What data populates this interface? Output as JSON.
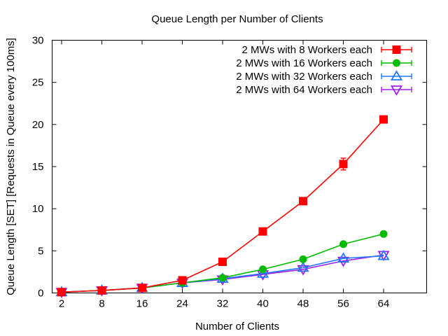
{
  "chart_data": {
    "type": "line",
    "title": "Queue Length per Number of Clients",
    "xlabel": "Number of Clients",
    "ylabel": "Queue Length [SET] [Requests in Queue every 100ms]",
    "x_ticks": [
      "2",
      "8",
      "16",
      "24",
      "32",
      "40",
      "48",
      "56",
      "64"
    ],
    "y_ticks": [
      "0",
      "5",
      "10",
      "15",
      "20",
      "25",
      "30"
    ],
    "ylim": [
      0,
      30
    ],
    "grid": false,
    "legend_position": "top-right",
    "series": [
      {
        "name": "2 MWs with 8 Workers each",
        "color": "#ff0000",
        "marker": "square",
        "x": [
          2,
          8,
          16,
          24,
          32,
          40,
          48,
          56,
          64
        ],
        "values": [
          0.1,
          0.3,
          0.6,
          1.5,
          3.7,
          7.3,
          10.9,
          15.3,
          20.6
        ],
        "errors": [
          0,
          0,
          0,
          0,
          0,
          0,
          0.3,
          0.7,
          0
        ]
      },
      {
        "name": "2 MWs with 16 Workers each",
        "color": "#00bb00",
        "marker": "circle",
        "x": [
          2,
          8,
          16,
          24,
          32,
          40,
          48,
          56,
          64
        ],
        "values": [
          0.1,
          0.3,
          0.6,
          1.2,
          1.8,
          2.8,
          4.0,
          5.8,
          7.0
        ],
        "errors": [
          0,
          0,
          0,
          0,
          0,
          0,
          0,
          0,
          0
        ]
      },
      {
        "name": "2 MWs with 32 Workers each",
        "color": "#1f78ff",
        "marker": "triangle-up",
        "x": [
          2,
          8,
          16,
          24,
          32,
          40,
          48,
          56,
          64
        ],
        "values": [
          0.1,
          0.3,
          0.6,
          1.2,
          1.7,
          2.3,
          3.0,
          4.1,
          4.4
        ],
        "errors": [
          0,
          0,
          0,
          0,
          0,
          0,
          0,
          0,
          0
        ]
      },
      {
        "name": "2 MWs with 64 Workers each",
        "color": "#a020f0",
        "marker": "triangle-down",
        "x": [
          2,
          8,
          16,
          24,
          32,
          40,
          48,
          56,
          64
        ],
        "values": [
          0.1,
          0.3,
          0.6,
          1.2,
          1.6,
          2.2,
          2.8,
          3.8,
          4.5
        ],
        "errors": [
          0,
          0,
          0,
          0,
          0,
          0,
          0,
          0,
          0
        ]
      }
    ]
  }
}
